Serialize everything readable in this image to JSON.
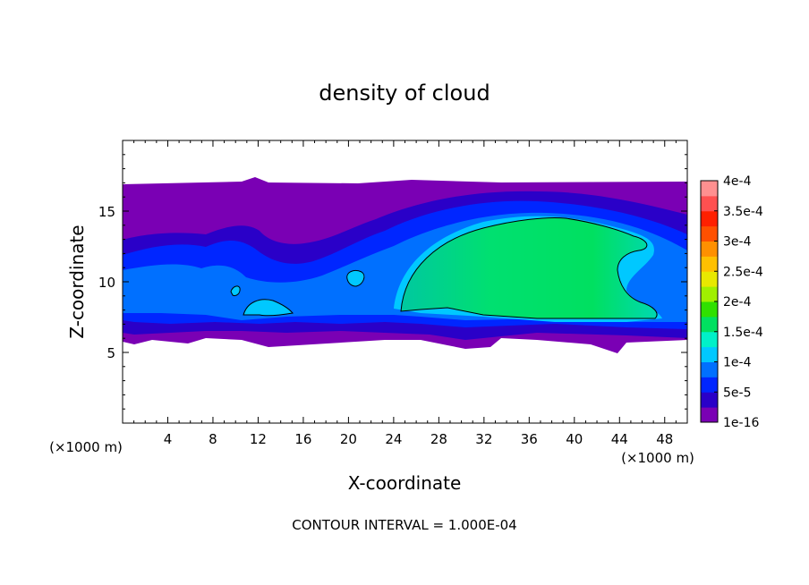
{
  "chart_data": {
    "type": "heatmap",
    "title": "density of cloud",
    "xlabel": "X-coordinate",
    "ylabel": "Z-coordinate",
    "x_unit": "(×1000 m)",
    "y_unit": "(×1000 m)",
    "xlim": [
      0,
      50
    ],
    "ylim": [
      0,
      20
    ],
    "x_ticks": [
      "4",
      "8",
      "12",
      "16",
      "20",
      "24",
      "28",
      "32",
      "36",
      "40",
      "44",
      "48"
    ],
    "y_ticks": [
      "5",
      "10",
      "15"
    ],
    "colorbar": {
      "labels": [
        "1e-16",
        "5e-5",
        "1e-4",
        "1.5e-4",
        "2e-4",
        "2.5e-4",
        "3e-4",
        "3.5e-4",
        "4e-4"
      ],
      "colors": [
        "#7a00b4",
        "#2a00c8",
        "#0026ff",
        "#0070ff",
        "#00c8ff",
        "#00f0c8",
        "#00e060",
        "#30e000",
        "#a0f000",
        "#e8e800",
        "#ffc000",
        "#ff9000",
        "#ff5000",
        "#ff2000",
        "#ff5050",
        "#ff9090"
      ]
    },
    "regions": [
      {
        "level": "1e-16",
        "x": [
          0,
          50
        ],
        "z": [
          5.5,
          17
        ]
      },
      {
        "level": "1.5e-4",
        "x": [
          24,
          47
        ],
        "z": [
          7.3,
          14.6
        ]
      }
    ],
    "contour_interval": "CONTOUR INTERVAL = 1.000E-04"
  }
}
